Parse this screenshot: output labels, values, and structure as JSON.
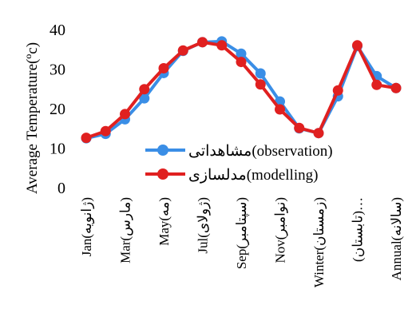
{
  "chart_data": {
    "type": "line",
    "title": "",
    "xlabel": "",
    "ylabel": "Average Temperature(ºc)",
    "ylim": [
      0,
      40
    ],
    "yticks": [
      0,
      10,
      20,
      30,
      40
    ],
    "grid": false,
    "legend_position": "center-right",
    "tick_labels": [
      "Jan(ژانویه)",
      "Mar(مارس)",
      "May(مه)",
      "Jul(ژولای)",
      "Sep(سپتامبر)",
      "Nov(نوامبر)",
      "Winter(زمستان)",
      "(تابستان)…",
      "Annual(سالانه)"
    ],
    "x": [
      1,
      2,
      3,
      4,
      5,
      6,
      7,
      8,
      9,
      10,
      11,
      12,
      13,
      14,
      15,
      16,
      17
    ],
    "series": [
      {
        "name": "مشاهداتی(observation)",
        "color": "#3a8ee6",
        "values": [
          12.5,
          13.6,
          17.3,
          22.6,
          29.0,
          34.6,
          36.8,
          37.0,
          33.9,
          28.9,
          21.8,
          15.0,
          13.8,
          23.1,
          35.8,
          28.2,
          25.2
        ]
      },
      {
        "name": "مدلسازی(modelling)",
        "color": "#e02020",
        "values": [
          12.6,
          14.3,
          18.6,
          24.9,
          30.2,
          34.7,
          36.8,
          36.0,
          31.8,
          26.1,
          19.8,
          15.1,
          13.8,
          24.6,
          36.0,
          26.0,
          25.2
        ]
      }
    ]
  }
}
